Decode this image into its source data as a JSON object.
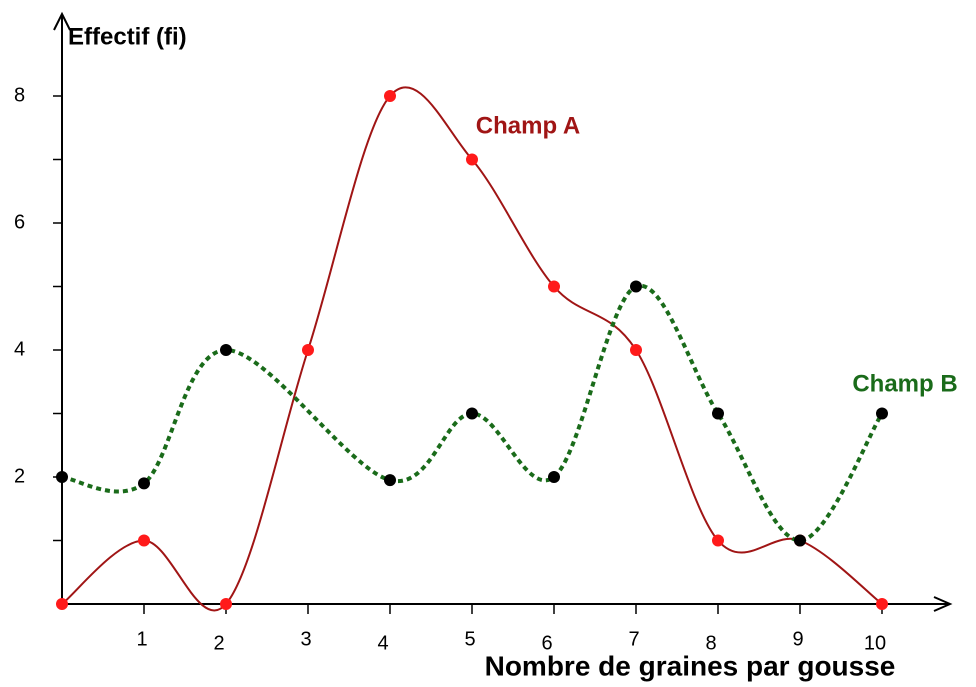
{
  "chart_data": {
    "type": "line",
    "y_label": "Effectif (fi)",
    "x_label": "Nombre de graines par gousse",
    "xlim": [
      0,
      10.8
    ],
    "ylim": [
      0,
      9.2
    ],
    "xticks": [
      1,
      2,
      3,
      4,
      5,
      6,
      7,
      8,
      9,
      10
    ],
    "yticks": [
      2,
      4,
      6,
      8
    ],
    "series": [
      {
        "name": "Champ A",
        "color": "#a01515",
        "point_color": "#ff1a1a",
        "dashed": false,
        "x": [
          0,
          1,
          2,
          3,
          4,
          5,
          6,
          7,
          8,
          9,
          10
        ],
        "values": [
          0,
          1,
          0,
          4,
          8,
          7,
          5,
          4,
          1,
          1,
          0
        ]
      },
      {
        "name": "Champ B",
        "color": "#1a6b1a",
        "point_color": "#000000",
        "dashed": true,
        "x": [
          0,
          1,
          2,
          4,
          5,
          6,
          7,
          8,
          9,
          10
        ],
        "values": [
          2,
          1.9,
          4,
          1.95,
          3,
          2,
          5,
          3,
          1,
          3
        ]
      }
    ]
  }
}
